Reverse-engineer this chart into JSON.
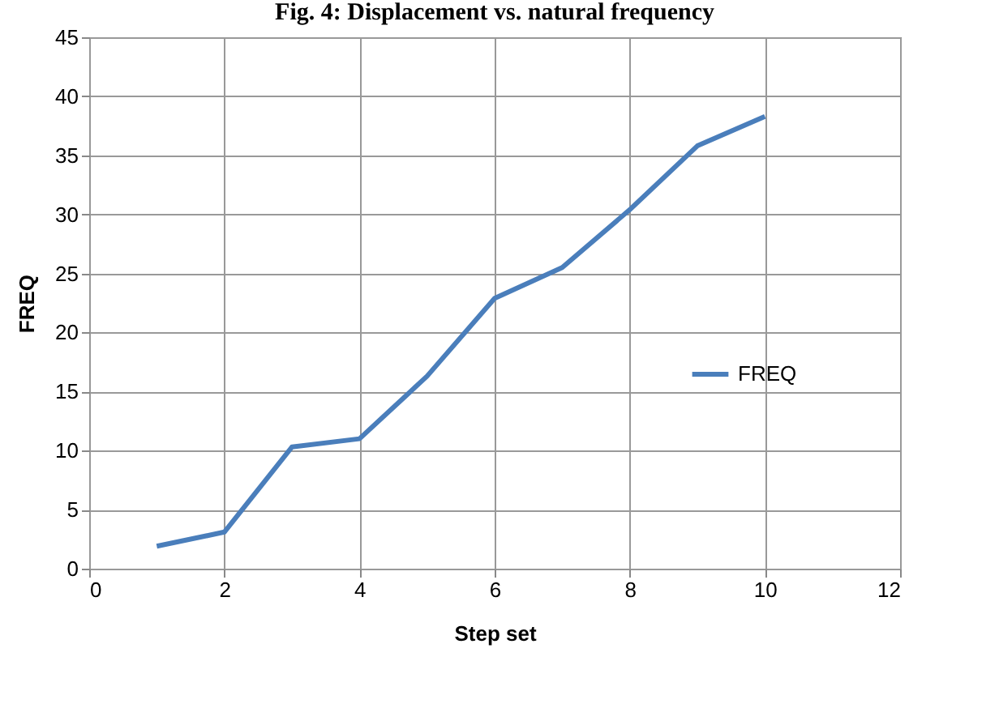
{
  "chart_data": {
    "type": "line",
    "title": "Fig. 4: Displacement vs. natural frequency",
    "xlabel": "Step set",
    "ylabel": "FREQ",
    "x": [
      1,
      2,
      3,
      4,
      5,
      6,
      7,
      8,
      9,
      10
    ],
    "series": [
      {
        "name": "FREQ",
        "color": "#4a7ebb",
        "values": [
          1.9,
          3.1,
          10.3,
          11.0,
          16.3,
          22.9,
          25.5,
          30.4,
          35.8,
          38.3
        ]
      }
    ],
    "xlim": [
      0,
      12
    ],
    "xticks": [
      0,
      2,
      4,
      6,
      8,
      10,
      12
    ],
    "ylim": [
      0,
      45
    ],
    "yticks": [
      0,
      5,
      10,
      15,
      20,
      25,
      30,
      35,
      40,
      45
    ],
    "grid": true,
    "legend": "right",
    "line_style": "solid"
  }
}
